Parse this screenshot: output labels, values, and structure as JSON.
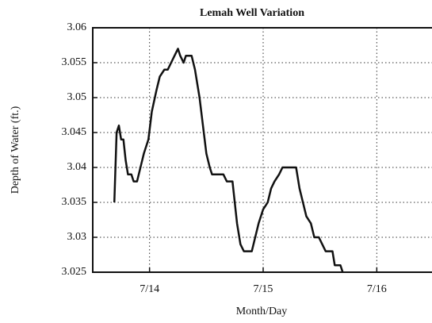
{
  "chart_data": {
    "type": "line",
    "title": "Lemah Well Variation",
    "x_label": "Month/Day",
    "y_label": "Depth  of Water (ft.)",
    "x": [
      13.69,
      13.71,
      13.73,
      13.75,
      13.77,
      13.79,
      13.81,
      13.84,
      13.86,
      13.89,
      13.92,
      13.95,
      13.99,
      14.02,
      14.06,
      14.09,
      14.13,
      14.16,
      14.19,
      14.22,
      14.25,
      14.27,
      14.3,
      14.32,
      14.37,
      14.4,
      14.44,
      14.47,
      14.5,
      14.53,
      14.55,
      14.58,
      14.65,
      14.68,
      14.73,
      14.75,
      14.77,
      14.8,
      14.83,
      14.9,
      14.93,
      14.96,
      15.0,
      15.04,
      15.07,
      15.1,
      15.14,
      15.17,
      15.29,
      15.32,
      15.35,
      15.38,
      15.42,
      15.45,
      15.49,
      15.52,
      15.55,
      15.61,
      15.63,
      15.68,
      15.7
    ],
    "series": [
      {
        "name": "Depth of Water",
        "color": "#111111",
        "values": [
          3.035,
          3.045,
          3.046,
          3.044,
          3.044,
          3.041,
          3.039,
          3.039,
          3.038,
          3.038,
          3.04,
          3.042,
          3.044,
          3.048,
          3.051,
          3.053,
          3.054,
          3.054,
          3.055,
          3.056,
          3.057,
          3.056,
          3.055,
          3.056,
          3.056,
          3.054,
          3.05,
          3.046,
          3.042,
          3.04,
          3.039,
          3.039,
          3.039,
          3.038,
          3.038,
          3.035,
          3.032,
          3.029,
          3.028,
          3.028,
          3.03,
          3.032,
          3.034,
          3.035,
          3.037,
          3.038,
          3.039,
          3.04,
          3.04,
          3.037,
          3.035,
          3.033,
          3.032,
          3.03,
          3.03,
          3.029,
          3.028,
          3.028,
          3.026,
          3.026,
          3.025
        ]
      }
    ],
    "xlim": [
      13.5,
      16.5
    ],
    "xticks": [
      {
        "value": 14,
        "label": "7/14"
      },
      {
        "value": 15,
        "label": "7/15"
      },
      {
        "value": 16,
        "label": "7/16"
      }
    ],
    "ylim": [
      3.025,
      3.06
    ],
    "yticks": [
      3.025,
      3.03,
      3.035,
      3.04,
      3.045,
      3.05,
      3.055,
      3.06
    ],
    "grid": true
  }
}
